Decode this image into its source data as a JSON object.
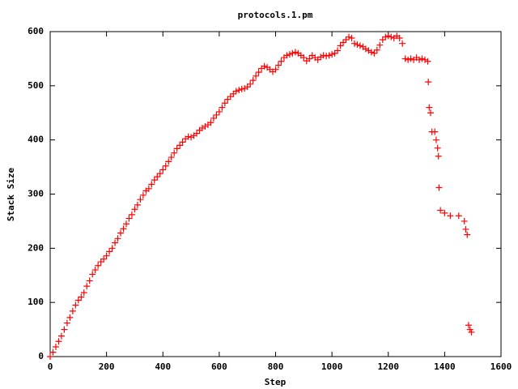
{
  "chart_data": {
    "type": "scatter",
    "title": "protocols.1.pm",
    "x_label": "Step",
    "y_label": "Stack Size",
    "color": "#ff0000",
    "marker": "+",
    "xlim": [
      0,
      1600
    ],
    "xticks": [
      0,
      200,
      400,
      600,
      800,
      1000,
      1200,
      1400,
      1600
    ],
    "ylim": [
      0,
      600
    ],
    "yticks": [
      0,
      100,
      200,
      300,
      400,
      500,
      600
    ],
    "grid": false,
    "x": [
      0,
      10,
      20,
      30,
      40,
      50,
      60,
      70,
      80,
      90,
      100,
      110,
      120,
      130,
      140,
      150,
      160,
      170,
      180,
      190,
      200,
      210,
      220,
      230,
      240,
      250,
      260,
      270,
      280,
      290,
      300,
      310,
      320,
      330,
      340,
      350,
      360,
      370,
      380,
      390,
      400,
      410,
      420,
      430,
      440,
      450,
      460,
      470,
      480,
      490,
      500,
      510,
      520,
      530,
      540,
      550,
      560,
      570,
      580,
      590,
      600,
      610,
      620,
      630,
      640,
      650,
      660,
      670,
      680,
      690,
      700,
      710,
      720,
      730,
      740,
      750,
      760,
      770,
      780,
      790,
      800,
      810,
      820,
      830,
      840,
      850,
      860,
      870,
      880,
      890,
      900,
      910,
      920,
      930,
      940,
      950,
      960,
      970,
      980,
      990,
      1000,
      1010,
      1020,
      1030,
      1040,
      1050,
      1060,
      1070,
      1080,
      1090,
      1100,
      1110,
      1120,
      1130,
      1140,
      1150,
      1160,
      1170,
      1180,
      1190,
      1200,
      1210,
      1220,
      1230,
      1240,
      1250,
      1260,
      1270,
      1280,
      1290,
      1300,
      1310,
      1320,
      1330,
      1340,
      1342,
      1345,
      1350,
      1355,
      1365,
      1370,
      1375,
      1378,
      1380,
      1385,
      1400,
      1420,
      1450,
      1470,
      1475,
      1480,
      1485,
      1490,
      1495
    ],
    "values": [
      0,
      8,
      18,
      28,
      38,
      50,
      62,
      72,
      84,
      95,
      104,
      110,
      118,
      130,
      140,
      152,
      160,
      168,
      175,
      180,
      186,
      194,
      200,
      210,
      218,
      228,
      236,
      245,
      255,
      262,
      272,
      280,
      290,
      298,
      306,
      310,
      318,
      326,
      332,
      338,
      345,
      352,
      360,
      368,
      376,
      384,
      390,
      396,
      402,
      406,
      405,
      408,
      412,
      418,
      422,
      425,
      428,
      432,
      440,
      446,
      452,
      460,
      468,
      475,
      480,
      485,
      490,
      492,
      494,
      495,
      498,
      503,
      510,
      518,
      525,
      532,
      536,
      534,
      530,
      526,
      530,
      538,
      545,
      552,
      556,
      558,
      560,
      562,
      560,
      556,
      552,
      546,
      550,
      556,
      552,
      548,
      553,
      556,
      555,
      556,
      558,
      560,
      565,
      574,
      580,
      585,
      590,
      588,
      578,
      576,
      574,
      572,
      568,
      565,
      562,
      560,
      566,
      575,
      585,
      590,
      592,
      590,
      588,
      592,
      588,
      578,
      550,
      548,
      550,
      548,
      552,
      548,
      550,
      548,
      545,
      507,
      460,
      450,
      415,
      415,
      400,
      385,
      370,
      312,
      270,
      265,
      260,
      260,
      250,
      235,
      225,
      58,
      50,
      45
    ]
  }
}
